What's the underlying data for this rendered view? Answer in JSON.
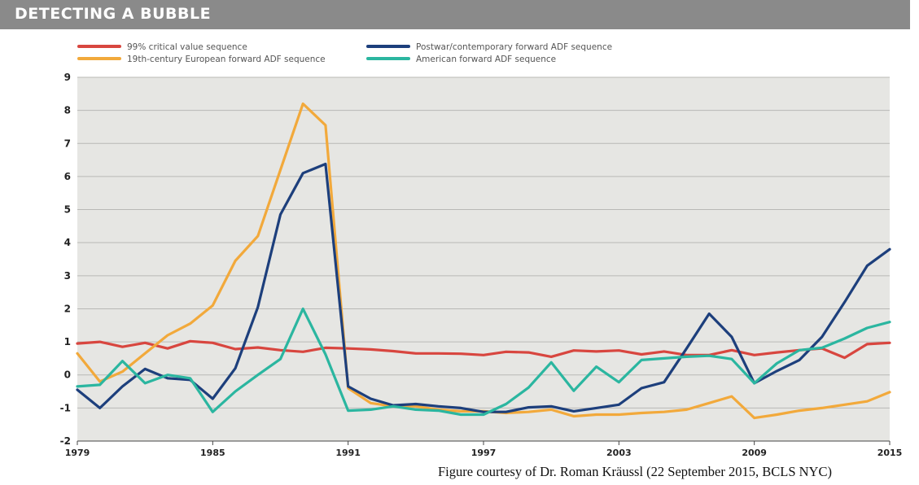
{
  "header": {
    "title": "DETECTING A BUBBLE"
  },
  "caption": "Figure courtesy of Dr. Roman Kräussl (22 September 2015, BCLS NYC)",
  "chart_data": {
    "type": "line",
    "title": "DETECTING A BUBBLE",
    "xlabel": "",
    "ylabel": "",
    "ylim": [
      -2,
      9
    ],
    "xlim": [
      1979,
      2015
    ],
    "yticks": [
      -2,
      -1,
      0,
      1,
      2,
      3,
      4,
      5,
      6,
      7,
      8,
      9
    ],
    "xticks": [
      1979,
      1985,
      1991,
      1997,
      2003,
      2009,
      2015
    ],
    "grid": "horizontal",
    "background": "#e6e6e3",
    "legend_position": "top",
    "x": [
      1979,
      1980,
      1981,
      1982,
      1983,
      1984,
      1985,
      1986,
      1987,
      1988,
      1989,
      1990,
      1991,
      1992,
      1993,
      1994,
      1995,
      1996,
      1997,
      1998,
      1999,
      2000,
      2001,
      2002,
      2003,
      2004,
      2005,
      2006,
      2007,
      2008,
      2009,
      2010,
      2011,
      2012,
      2013,
      2014,
      2015
    ],
    "series": [
      {
        "name": "99% critical value sequence",
        "color": "#d8463f",
        "values": [
          0.95,
          1.0,
          0.85,
          0.97,
          0.8,
          1.02,
          0.97,
          0.78,
          0.83,
          0.75,
          0.7,
          0.82,
          0.8,
          0.77,
          0.72,
          0.65,
          0.65,
          0.64,
          0.6,
          0.7,
          0.68,
          0.55,
          0.74,
          0.71,
          0.74,
          0.62,
          0.71,
          0.6,
          0.6,
          0.75,
          0.6,
          0.68,
          0.75,
          0.8,
          0.52,
          0.93,
          0.97
        ]
      },
      {
        "name": "19th-century European forward ADF sequence",
        "color": "#f2a93b",
        "values": [
          0.65,
          -0.2,
          0.1,
          0.65,
          1.2,
          1.55,
          2.1,
          3.45,
          4.2,
          6.2,
          8.2,
          7.55,
          -0.4,
          -0.85,
          -0.95,
          -0.95,
          -1.05,
          -1.1,
          -1.1,
          -1.15,
          -1.12,
          -1.05,
          -1.25,
          -1.2,
          -1.2,
          -1.15,
          -1.12,
          -1.05,
          -0.85,
          -0.65,
          -1.3,
          -1.2,
          -1.08,
          -1.0,
          -0.9,
          -0.8,
          -0.52
        ]
      },
      {
        "name": "Postwar/contemporary forward ADF sequence",
        "color": "#1d3f7c",
        "values": [
          -0.45,
          -1.0,
          -0.35,
          0.18,
          -0.1,
          -0.15,
          -0.72,
          0.2,
          2.05,
          4.85,
          6.1,
          6.38,
          -0.35,
          -0.72,
          -0.92,
          -0.88,
          -0.95,
          -1.0,
          -1.12,
          -1.12,
          -0.98,
          -0.95,
          -1.1,
          -1.0,
          -0.9,
          -0.4,
          -0.22,
          0.8,
          1.85,
          1.15,
          -0.25,
          0.12,
          0.45,
          1.15,
          2.2,
          3.3,
          3.8
        ]
      },
      {
        "name": "American forward ADF sequence",
        "color": "#2bb6a0",
        "values": [
          -0.35,
          -0.3,
          0.42,
          -0.25,
          0.0,
          -0.1,
          -1.12,
          -0.5,
          0.0,
          0.48,
          2.0,
          0.62,
          -1.08,
          -1.05,
          -0.95,
          -1.05,
          -1.08,
          -1.2,
          -1.2,
          -0.88,
          -0.38,
          0.38,
          -0.48,
          0.25,
          -0.22,
          0.45,
          0.5,
          0.55,
          0.58,
          0.48,
          -0.25,
          0.35,
          0.75,
          0.82,
          1.1,
          1.42,
          1.6
        ]
      }
    ]
  }
}
